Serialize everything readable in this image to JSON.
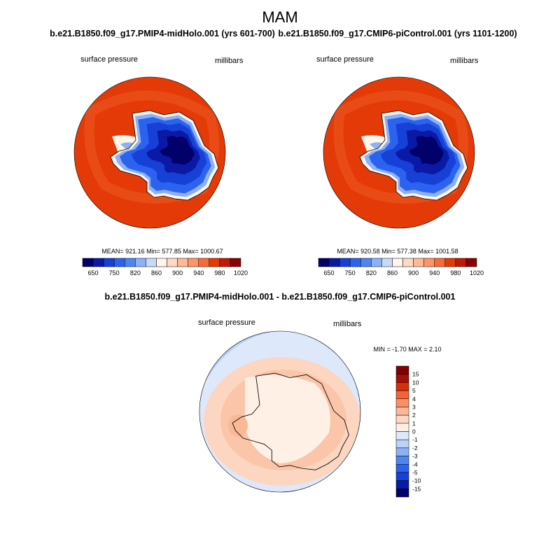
{
  "figure": {
    "title": "MAM",
    "diff_title": "b.e21.B1850.f09_g17.PMIP4-midHolo.001 - b.e21.B1850.f09_g17.CMIP6-piControl.001"
  },
  "colors": {
    "ocean_field": "#e33a08",
    "coast_line": "#000000",
    "panel_palette": [
      "#020069",
      "#0a1aa6",
      "#1640d6",
      "#2b63f0",
      "#4f86ee",
      "#8cb1f5",
      "#c6dbfa",
      "#fff5ea",
      "#ffd9c2",
      "#ffb995",
      "#ff9466",
      "#fa6a38",
      "#e33a08",
      "#c21806",
      "#8b0000"
    ],
    "diff_palette": [
      "#020069",
      "#0a1aa6",
      "#1640d6",
      "#2b63f0",
      "#4f86ee",
      "#8cb1f5",
      "#b9d3f6",
      "#dde9fb",
      "#fff0e6",
      "#fcd6c0",
      "#f9b896",
      "#fa8f63",
      "#f26433",
      "#d4300f",
      "#a50f04",
      "#7f0000"
    ]
  },
  "chart_data": [
    {
      "type": "polar_contour",
      "title": "b.e21.B1850.f09_g17.PMIP4-midHolo.001 (yrs 601-700)",
      "variable": "surface pressure",
      "units": "millibars",
      "stats": "MEAN= 921.16  Min= 577.85  Max= 1000.67",
      "mean": 921.16,
      "min": 577.85,
      "max": 1000.67,
      "colorbar_levels": [
        650,
        700,
        750,
        780,
        820,
        840,
        860,
        880,
        900,
        920,
        940,
        960,
        980,
        1000,
        1020
      ],
      "colorbar_labels": [
        "650",
        "750",
        "820",
        "860",
        "900",
        "940",
        "980",
        "1020"
      ]
    },
    {
      "type": "polar_contour",
      "title": "b.e21.B1850.f09_g17.CMIP6-piControl.001 (yrs 1101-1200)",
      "variable": "surface pressure",
      "units": "millibars",
      "stats": "MEAN= 920.58  Min= 577.38  Max= 1001.58",
      "mean": 920.58,
      "min": 577.38,
      "max": 1001.58,
      "colorbar_levels": [
        650,
        700,
        750,
        780,
        820,
        840,
        860,
        880,
        900,
        920,
        940,
        960,
        980,
        1000,
        1020
      ],
      "colorbar_labels": [
        "650",
        "750",
        "820",
        "860",
        "900",
        "940",
        "980",
        "1020"
      ]
    },
    {
      "type": "polar_contour_difference",
      "title": "b.e21.B1850.f09_g17.PMIP4-midHolo.001 - b.e21.B1850.f09_g17.CMIP6-piControl.001",
      "variable": "surface pressure",
      "units": "millibars",
      "stats": "MIN =  -1.70 MAX =   2.10",
      "min": -1.7,
      "max": 2.1,
      "colorbar_levels": [
        "15",
        "10",
        "5",
        "4",
        "3",
        "2",
        "1",
        "0",
        "-1",
        "-2",
        "-3",
        "-4",
        "-5",
        "-10",
        "-15"
      ]
    }
  ]
}
